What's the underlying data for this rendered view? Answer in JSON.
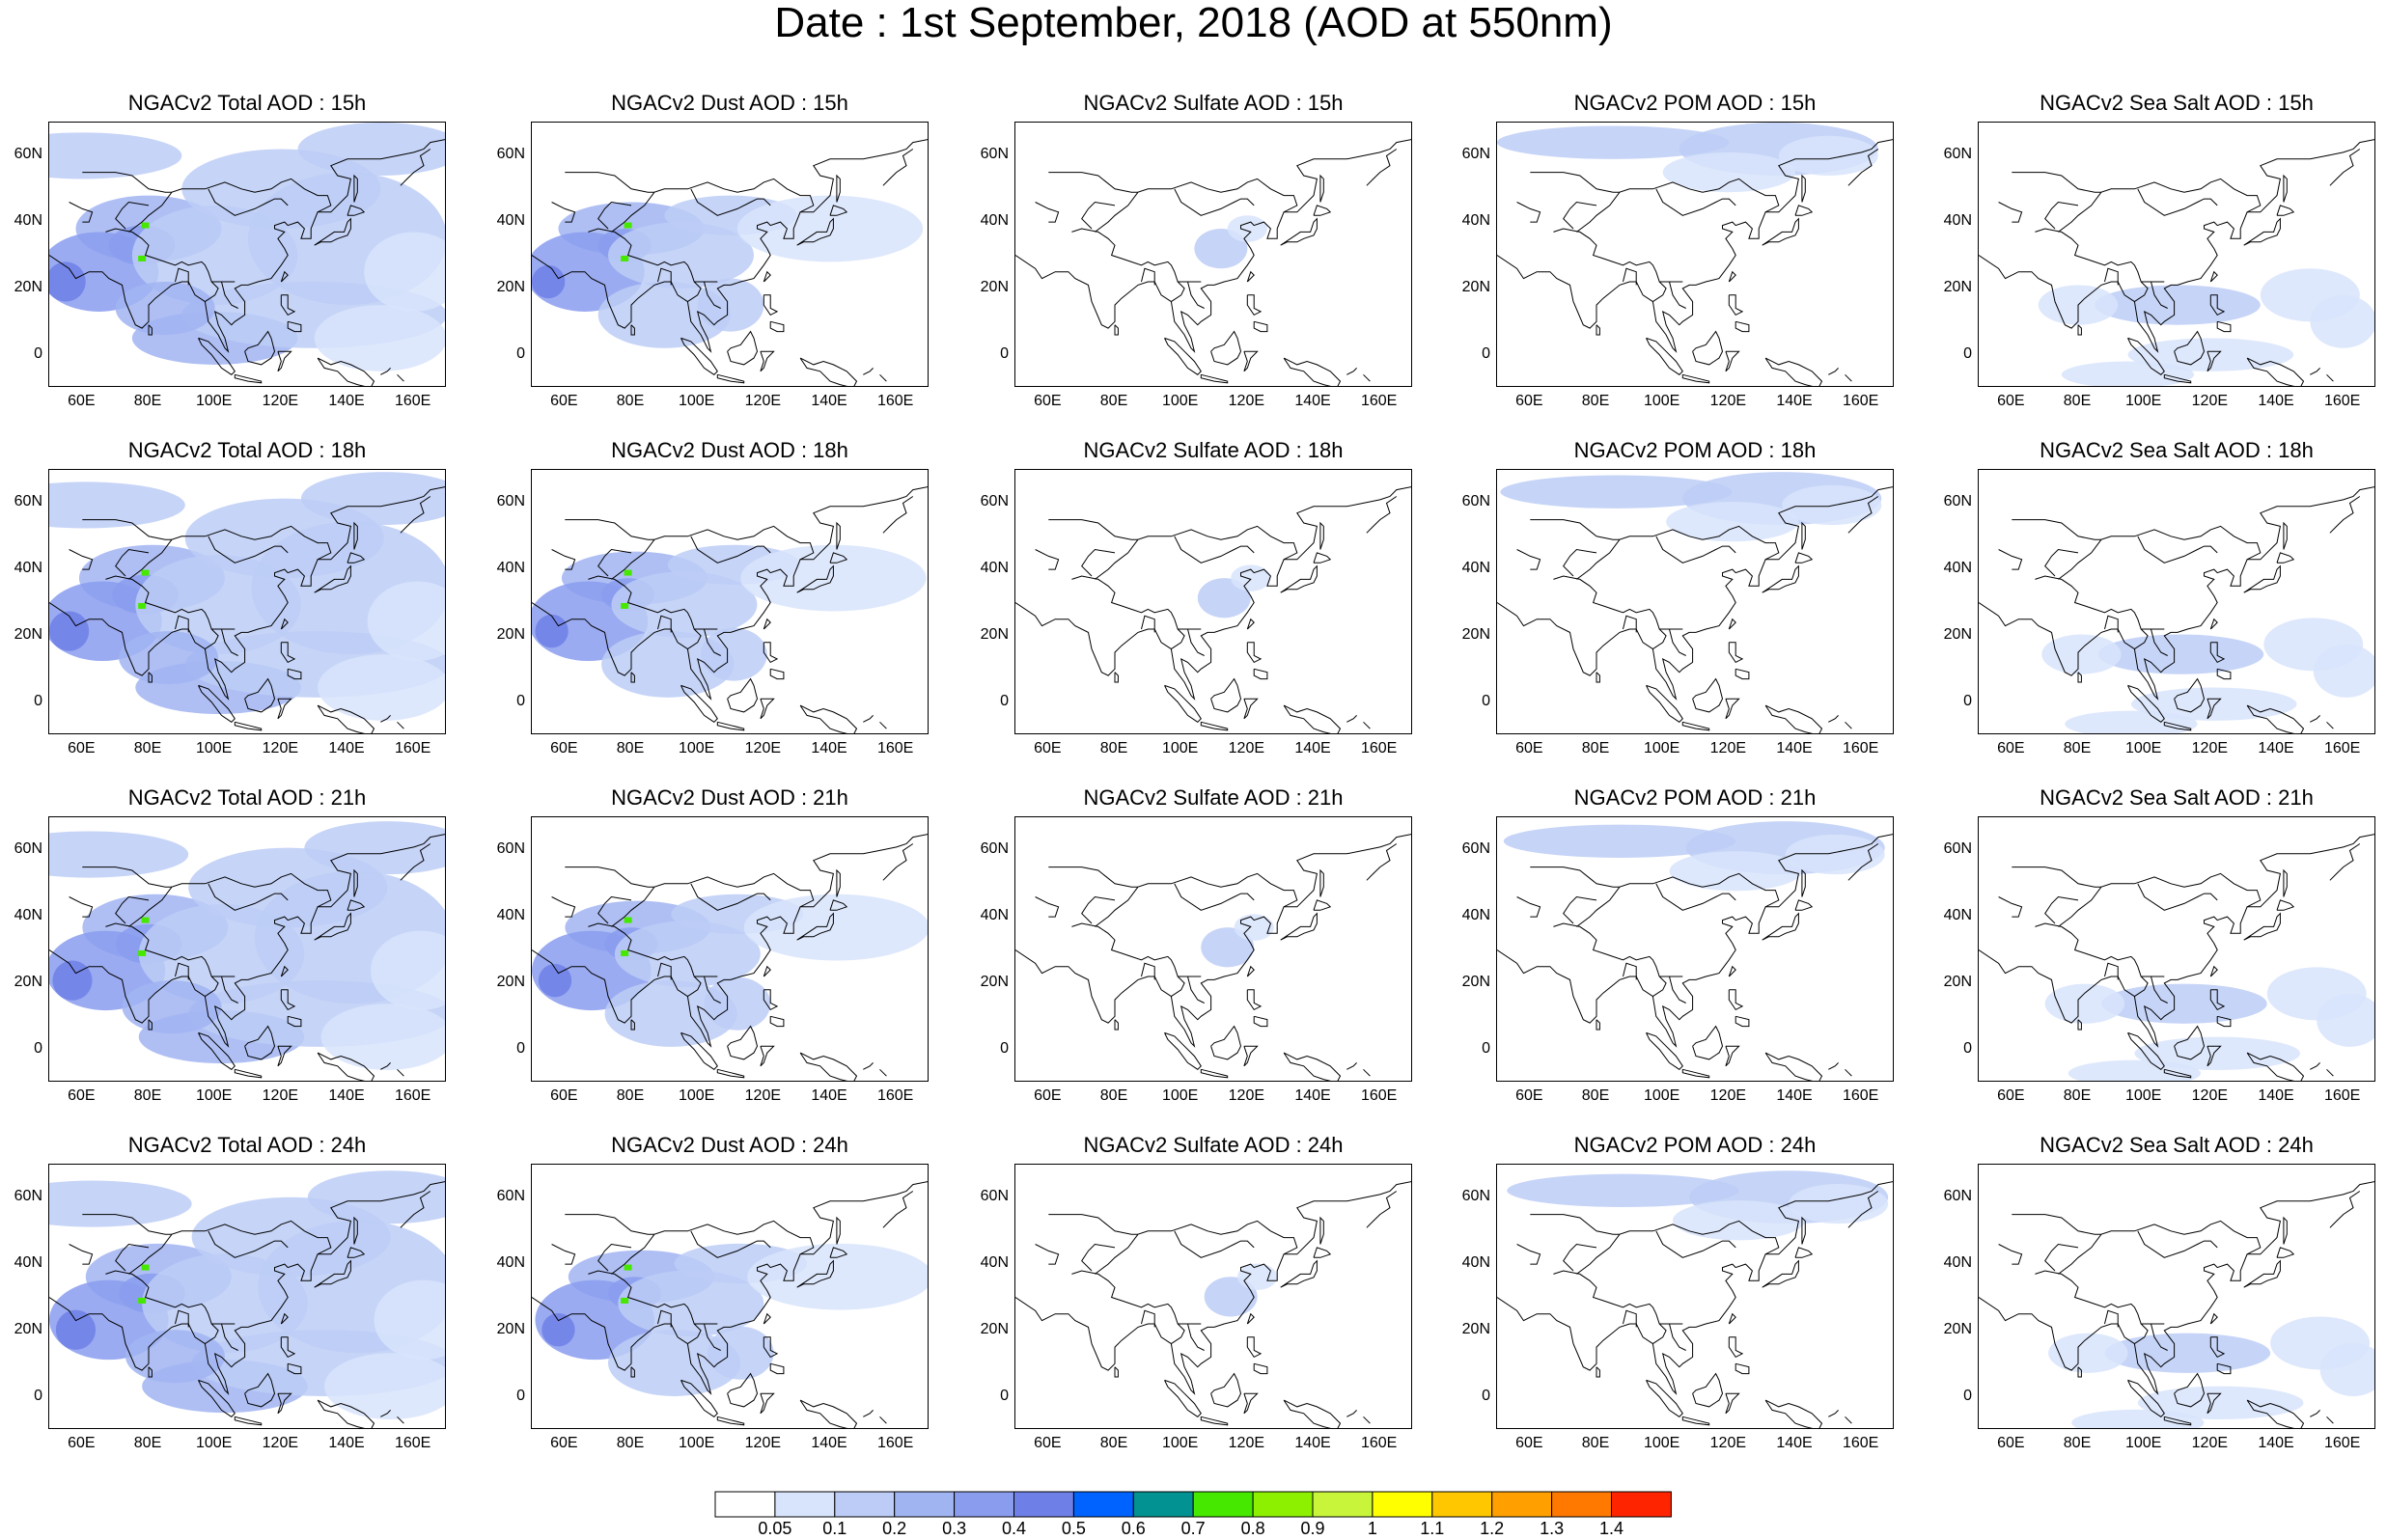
{
  "title": "Date : 1st September, 2018 (AOD at 550nm)",
  "rows": [
    "15h",
    "18h",
    "21h",
    "24h"
  ],
  "panels": [
    [
      "NGACv2 Total AOD : 15h",
      "NGACv2 Dust AOD : 15h",
      "NGACv2 Sulfate AOD : 15h",
      "NGACv2 POM AOD : 15h",
      "NGACv2 Sea Salt AOD : 15h"
    ],
    [
      "NGACv2 Total AOD : 18h",
      "NGACv2 Dust AOD : 18h",
      "NGACv2 Sulfate AOD : 18h",
      "NGACv2 POM AOD : 18h",
      "NGACv2 Sea Salt AOD : 18h"
    ],
    [
      "NGACv2 Total AOD : 21h",
      "NGACv2 Dust AOD : 21h",
      "NGACv2 Sulfate AOD : 21h",
      "NGACv2 POM AOD : 21h",
      "NGACv2 Sea Salt AOD : 21h"
    ],
    [
      "NGACv2 Total AOD : 24h",
      "NGACv2 Dust AOD : 24h",
      "NGACv2 Sulfate AOD : 24h",
      "NGACv2 POM AOD : 24h",
      "NGACv2 Sea Salt  AOD : 24h"
    ]
  ],
  "lat_ticks": [
    "60N",
    "40N",
    "20N",
    "0"
  ],
  "lon_ticks": [
    "60E",
    "80E",
    "100E",
    "120E",
    "140E",
    "160E"
  ],
  "map_extent": {
    "lon": [
      50,
      170
    ],
    "lat": [
      -10,
      70
    ]
  },
  "colorbar": {
    "labels": [
      "0.05",
      "0.1",
      "0.2",
      "0.3",
      "0.4",
      "0.5",
      "0.6",
      "0.7",
      "0.8",
      "0.9",
      "1",
      "1.1",
      "1.2",
      "1.3",
      "1.4"
    ],
    "colors": [
      "#ffffff",
      "#d8e4fb",
      "#bcccf6",
      "#a1b4f2",
      "#8a9cee",
      "#6f7fe8",
      "#0063ff",
      "#039292",
      "#46e800",
      "#8cf000",
      "#c8f53a",
      "#ffff00",
      "#ffc700",
      "#ffa000",
      "#ff7800",
      "#ff2400"
    ]
  }
}
